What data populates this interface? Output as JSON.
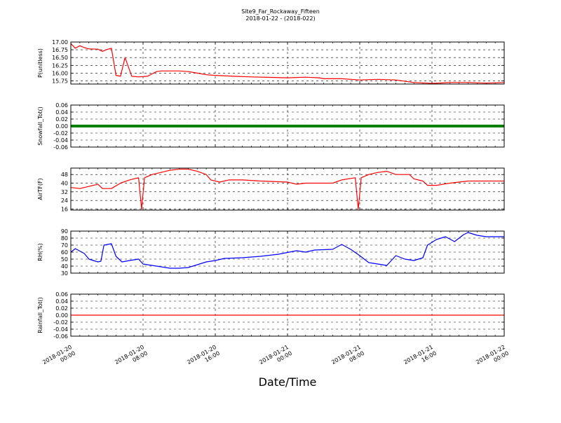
{
  "title": "Site9_Far_Rockaway_Fifteen",
  "subtitle": "2018-01-22 - (2018-022)",
  "xlabel": "Date/Time",
  "x_ticks": [
    {
      "line1": "2018-01-20",
      "line2": "00:00"
    },
    {
      "line1": "2018-01-20",
      "line2": "08:00"
    },
    {
      "line1": "2018-01-20",
      "line2": "16:00"
    },
    {
      "line1": "2018-01-21",
      "line2": "00:00"
    },
    {
      "line1": "2018-01-21",
      "line2": "08:00"
    },
    {
      "line1": "2018-01-21",
      "line2": "16:00"
    },
    {
      "line1": "2018-01-22",
      "line2": "00:00"
    }
  ],
  "chart_data": [
    {
      "type": "line",
      "ylabel": "P(unitless)",
      "ylim": [
        15.65,
        17.0
      ],
      "yticks": [
        "17.00",
        "16.75",
        "16.50",
        "16.25",
        "16.00",
        "15.75"
      ],
      "ytick_values": [
        17.0,
        16.75,
        16.5,
        16.25,
        16.0,
        15.75
      ],
      "xlim": [
        "2018-01-20 00:00",
        "2018-01-22 00:00"
      ],
      "grid": true,
      "color": "#ff0000",
      "points": [
        [
          "2018-01-20 00:00",
          16.95
        ],
        [
          "2018-01-20 00:30",
          16.8
        ],
        [
          "2018-01-20 01:00",
          16.88
        ],
        [
          "2018-01-20 01:30",
          16.82
        ],
        [
          "2018-01-20 02:00",
          16.78
        ],
        [
          "2018-01-20 03:00",
          16.77
        ],
        [
          "2018-01-20 03:30",
          16.7
        ],
        [
          "2018-01-20 04:00",
          16.76
        ],
        [
          "2018-01-20 04:30",
          16.8
        ],
        [
          "2018-01-20 05:00",
          15.93
        ],
        [
          "2018-01-20 05:30",
          15.9
        ],
        [
          "2018-01-20 06:00",
          16.5
        ],
        [
          "2018-01-20 06:45",
          15.9
        ],
        [
          "2018-01-20 07:30",
          15.88
        ],
        [
          "2018-01-20 08:30",
          15.9
        ],
        [
          "2018-01-20 09:30",
          16.05
        ],
        [
          "2018-01-20 10:00",
          16.07
        ],
        [
          "2018-01-20 12:00",
          16.07
        ],
        [
          "2018-01-20 13:00",
          16.05
        ],
        [
          "2018-01-20 14:00",
          16.0
        ],
        [
          "2018-01-20 15:00",
          15.95
        ],
        [
          "2018-01-20 16:00",
          15.93
        ],
        [
          "2018-01-20 18:00",
          15.9
        ],
        [
          "2018-01-20 20:00",
          15.88
        ],
        [
          "2018-01-21 00:00",
          15.85
        ],
        [
          "2018-01-21 02:00",
          15.87
        ],
        [
          "2018-01-21 03:30",
          15.85
        ],
        [
          "2018-01-21 04:00",
          15.82
        ],
        [
          "2018-01-21 06:00",
          15.82
        ],
        [
          "2018-01-21 08:00",
          15.78
        ],
        [
          "2018-01-21 10:00",
          15.8
        ],
        [
          "2018-01-21 12:00",
          15.78
        ],
        [
          "2018-01-21 14:00",
          15.7
        ],
        [
          "2018-01-21 15:30",
          15.68
        ],
        [
          "2018-01-21 16:00",
          15.67
        ],
        [
          "2018-01-21 18:00",
          15.7
        ],
        [
          "2018-01-21 20:00",
          15.7
        ],
        [
          "2018-01-21 22:00",
          15.68
        ],
        [
          "2018-01-22 00:00",
          15.7
        ]
      ]
    },
    {
      "type": "line",
      "ylabel": "Snowfall_Tot()",
      "ylim": [
        -0.06,
        0.06
      ],
      "yticks": [
        "0.06",
        "0.04",
        "0.02",
        "0.00",
        "-0.02",
        "-0.04",
        "-0.06"
      ],
      "ytick_values": [
        0.06,
        0.04,
        0.02,
        0.0,
        -0.02,
        -0.04,
        -0.06
      ],
      "xlim": [
        "2018-01-20 00:00",
        "2018-01-22 00:00"
      ],
      "grid": true,
      "color": "#007f00",
      "points": [
        [
          "2018-01-20 00:00",
          0.0
        ],
        [
          "2018-01-22 00:00",
          0.0
        ]
      ]
    },
    {
      "type": "line",
      "ylabel": "AirTF(F)",
      "ylim": [
        15,
        54
      ],
      "yticks": [
        "48",
        "40",
        "32",
        "24",
        "16"
      ],
      "ytick_values": [
        48,
        40,
        32,
        24,
        16
      ],
      "xlim": [
        "2018-01-20 00:00",
        "2018-01-22 00:00"
      ],
      "grid": true,
      "color": "#ff0000",
      "points": [
        [
          "2018-01-20 00:00",
          36
        ],
        [
          "2018-01-20 01:00",
          35
        ],
        [
          "2018-01-20 02:00",
          37
        ],
        [
          "2018-01-20 03:00",
          39
        ],
        [
          "2018-01-20 03:30",
          35
        ],
        [
          "2018-01-20 04:30",
          35
        ],
        [
          "2018-01-20 05:30",
          40
        ],
        [
          "2018-01-20 06:30",
          43
        ],
        [
          "2018-01-20 07:30",
          45
        ],
        [
          "2018-01-20 07:50",
          16
        ],
        [
          "2018-01-20 08:10",
          45
        ],
        [
          "2018-01-20 09:00",
          48
        ],
        [
          "2018-01-20 10:00",
          50
        ],
        [
          "2018-01-20 11:00",
          52
        ],
        [
          "2018-01-20 12:00",
          53
        ],
        [
          "2018-01-20 13:00",
          53
        ],
        [
          "2018-01-20 14:00",
          51
        ],
        [
          "2018-01-20 15:00",
          48
        ],
        [
          "2018-01-20 15:30",
          43
        ],
        [
          "2018-01-20 16:30",
          41
        ],
        [
          "2018-01-20 17:30",
          43
        ],
        [
          "2018-01-20 19:00",
          43
        ],
        [
          "2018-01-20 21:00",
          42
        ],
        [
          "2018-01-21 00:00",
          41
        ],
        [
          "2018-01-21 01:00",
          39
        ],
        [
          "2018-01-21 02:00",
          40
        ],
        [
          "2018-01-21 05:00",
          40
        ],
        [
          "2018-01-21 06:00",
          43
        ],
        [
          "2018-01-21 07:30",
          45
        ],
        [
          "2018-01-21 07:50",
          16
        ],
        [
          "2018-01-21 08:10",
          45
        ],
        [
          "2018-01-21 09:00",
          48
        ],
        [
          "2018-01-21 10:00",
          50
        ],
        [
          "2018-01-21 11:00",
          51
        ],
        [
          "2018-01-21 12:00",
          48
        ],
        [
          "2018-01-21 13:30",
          48
        ],
        [
          "2018-01-21 14:00",
          44
        ],
        [
          "2018-01-21 15:00",
          42
        ],
        [
          "2018-01-21 15:30",
          38
        ],
        [
          "2018-01-21 16:30",
          38
        ],
        [
          "2018-01-21 18:00",
          40
        ],
        [
          "2018-01-21 20:00",
          42
        ],
        [
          "2018-01-22 00:00",
          42
        ]
      ]
    },
    {
      "type": "line",
      "ylabel": "RH(%)",
      "ylim": [
        30,
        90
      ],
      "yticks": [
        "90",
        "80",
        "70",
        "60",
        "50",
        "40",
        "30"
      ],
      "ytick_values": [
        90,
        80,
        70,
        60,
        50,
        40,
        30
      ],
      "xlim": [
        "2018-01-20 00:00",
        "2018-01-22 00:00"
      ],
      "grid": true,
      "color": "#0000ff",
      "points": [
        [
          "2018-01-20 00:00",
          60
        ],
        [
          "2018-01-20 00:30",
          65
        ],
        [
          "2018-01-20 01:30",
          58
        ],
        [
          "2018-01-20 02:00",
          50
        ],
        [
          "2018-01-20 03:00",
          46
        ],
        [
          "2018-01-20 03:20",
          47
        ],
        [
          "2018-01-20 03:40",
          70
        ],
        [
          "2018-01-20 04:30",
          72
        ],
        [
          "2018-01-20 05:00",
          54
        ],
        [
          "2018-01-20 05:40",
          46
        ],
        [
          "2018-01-20 06:30",
          48
        ],
        [
          "2018-01-20 07:30",
          50
        ],
        [
          "2018-01-20 08:00",
          43
        ],
        [
          "2018-01-20 09:00",
          41
        ],
        [
          "2018-01-20 10:00",
          39
        ],
        [
          "2018-01-20 11:00",
          37
        ],
        [
          "2018-01-20 12:00",
          37
        ],
        [
          "2018-01-20 13:00",
          38
        ],
        [
          "2018-01-20 14:00",
          42
        ],
        [
          "2018-01-20 15:00",
          46
        ],
        [
          "2018-01-20 16:00",
          48
        ],
        [
          "2018-01-20 17:00",
          51
        ],
        [
          "2018-01-20 19:00",
          52
        ],
        [
          "2018-01-20 21:00",
          54
        ],
        [
          "2018-01-20 23:00",
          57
        ],
        [
          "2018-01-21 01:00",
          62
        ],
        [
          "2018-01-21 02:00",
          60
        ],
        [
          "2018-01-21 03:00",
          63
        ],
        [
          "2018-01-21 05:00",
          64
        ],
        [
          "2018-01-21 06:00",
          71
        ],
        [
          "2018-01-21 07:00",
          64
        ],
        [
          "2018-01-21 08:00",
          55
        ],
        [
          "2018-01-21 09:00",
          45
        ],
        [
          "2018-01-21 10:00",
          43
        ],
        [
          "2018-01-21 11:00",
          41
        ],
        [
          "2018-01-21 12:00",
          55
        ],
        [
          "2018-01-21 13:00",
          50
        ],
        [
          "2018-01-21 14:00",
          48
        ],
        [
          "2018-01-21 15:00",
          52
        ],
        [
          "2018-01-21 15:30",
          70
        ],
        [
          "2018-01-21 16:30",
          78
        ],
        [
          "2018-01-21 17:30",
          82
        ],
        [
          "2018-01-21 18:30",
          75
        ],
        [
          "2018-01-21 19:30",
          85
        ],
        [
          "2018-01-21 20:00",
          88
        ],
        [
          "2018-01-21 21:00",
          84
        ],
        [
          "2018-01-21 22:00",
          82
        ],
        [
          "2018-01-22 00:00",
          82
        ]
      ]
    },
    {
      "type": "line",
      "ylabel": "Rainfall_Tot()",
      "ylim": [
        -0.06,
        0.06
      ],
      "yticks": [
        "0.06",
        "0.04",
        "0.02",
        "0.00",
        "-0.02",
        "-0.04",
        "-0.06"
      ],
      "ytick_values": [
        0.06,
        0.04,
        0.02,
        0.0,
        -0.02,
        -0.04,
        -0.06
      ],
      "xlim": [
        "2018-01-20 00:00",
        "2018-01-22 00:00"
      ],
      "grid": true,
      "color": "#ff0000",
      "points": [
        [
          "2018-01-20 00:00",
          0.0
        ],
        [
          "2018-01-22 00:00",
          0.0
        ]
      ]
    }
  ]
}
